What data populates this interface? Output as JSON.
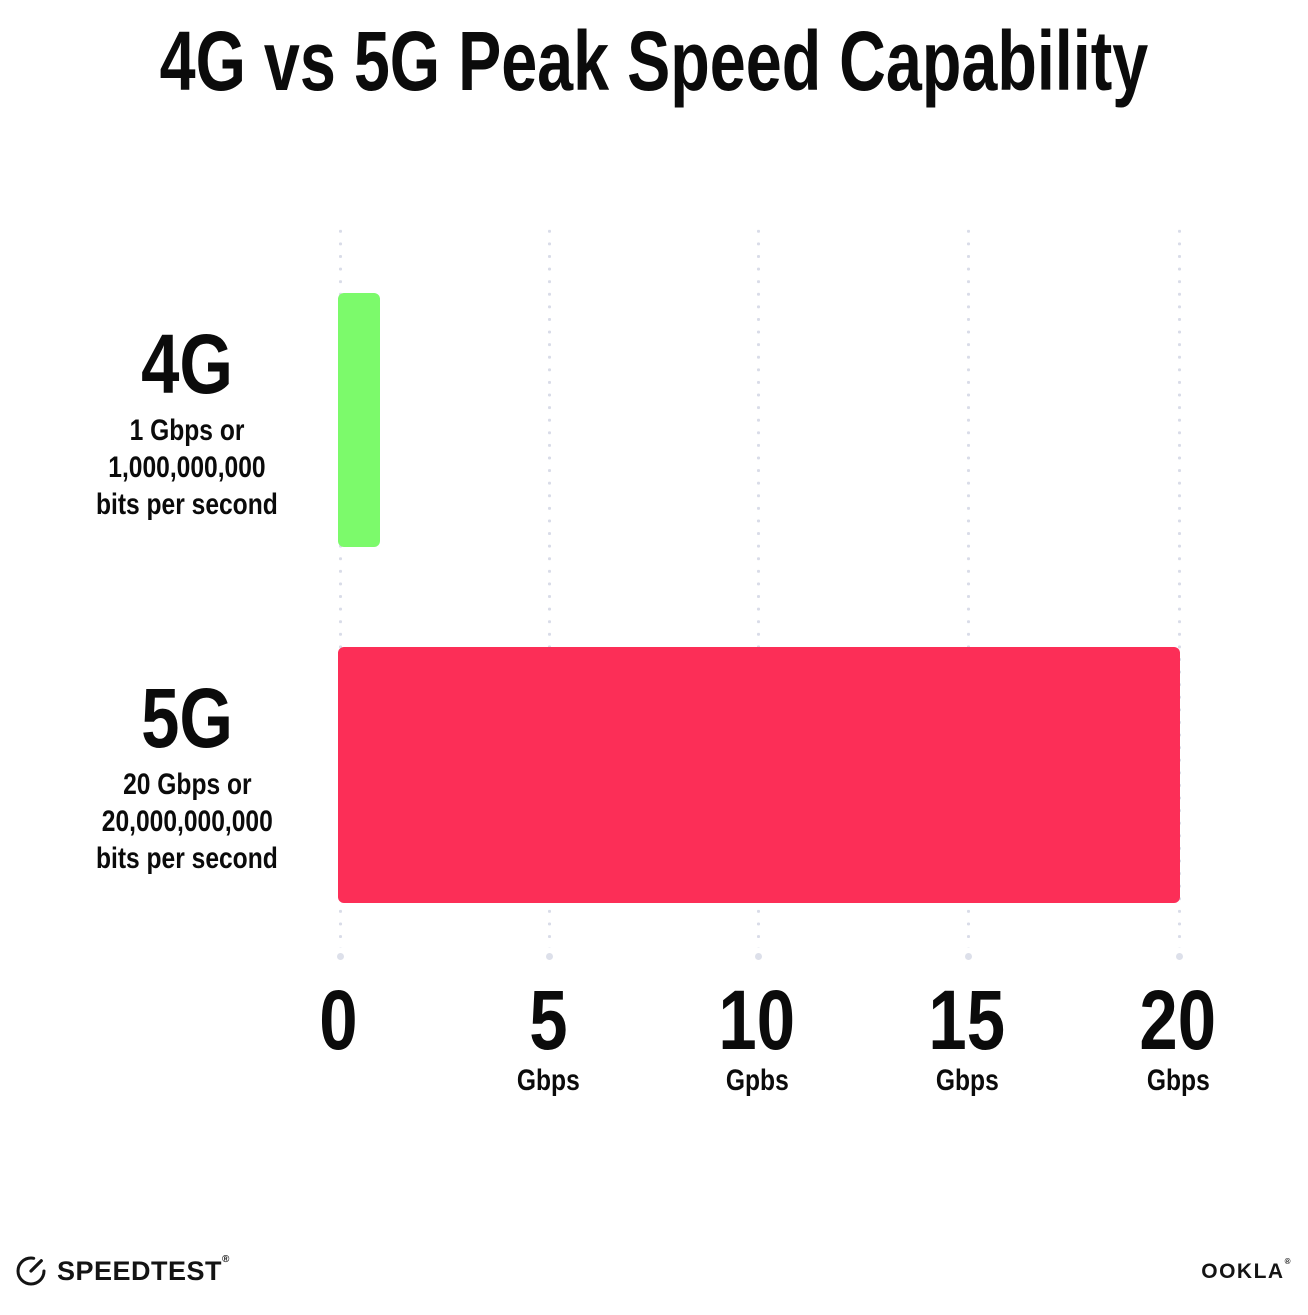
{
  "title": "4G vs 5G Peak Speed Capability",
  "chart_data": {
    "type": "bar",
    "orientation": "horizontal",
    "title": "4G vs 5G Peak Speed Capability",
    "xlabel": "",
    "ylabel": "",
    "xlim": [
      0,
      20
    ],
    "grid": "vertical-dotted",
    "grid_dot_color": "#d9dce8",
    "rows": [
      {
        "category": "4G",
        "value": 1,
        "value_unit": "Gbps",
        "color": "#7cfa6b",
        "sublabel_line1": "1 Gbps or",
        "sublabel_line2": "1,000,000,000",
        "sublabel_line3": "bits per second"
      },
      {
        "category": "5G",
        "value": 20,
        "value_unit": "Gbps",
        "color": "#fc2e57",
        "sublabel_line1": "20 Gbps or",
        "sublabel_line2": "20,000,000,000",
        "sublabel_line3": "bits per second"
      }
    ],
    "x_ticks": [
      {
        "value": 0,
        "label": "0",
        "unit": ""
      },
      {
        "value": 5,
        "label": "5",
        "unit": "Gbps"
      },
      {
        "value": 10,
        "label": "10",
        "unit": "Gpbs"
      },
      {
        "value": 15,
        "label": "15",
        "unit": "Gbps"
      },
      {
        "value": 20,
        "label": "20",
        "unit": "Gbps"
      }
    ]
  },
  "footer": {
    "speedtest_wordmark": "SPEEDTEST",
    "speedtest_trademark": "®",
    "ookla_wordmark": "OOKLA",
    "ookla_trademark": "®"
  }
}
